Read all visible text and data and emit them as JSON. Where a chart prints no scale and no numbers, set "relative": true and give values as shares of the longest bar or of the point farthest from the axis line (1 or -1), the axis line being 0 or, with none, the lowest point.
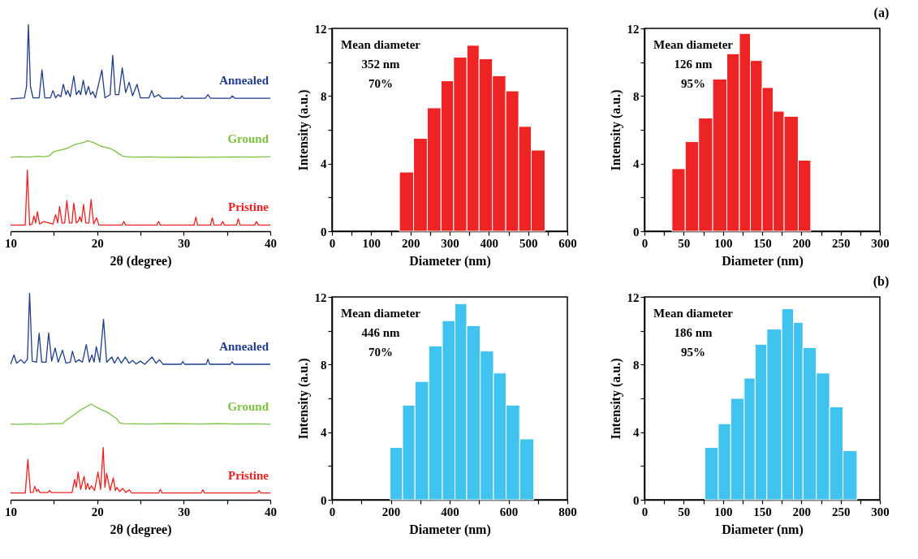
{
  "chart_data": [
    {
      "type": "line",
      "relative": true,
      "xlabel": "2θ (degree)",
      "xlim": [
        10,
        40
      ],
      "xticks": [
        10,
        {
          "value": 15,
          "label": null
        },
        20,
        {
          "value": 25,
          "label": null
        },
        30,
        {
          "value": 35,
          "label": null
        },
        40
      ],
      "series": [
        {
          "name": "Annealed",
          "color": "#1f3d8a",
          "x": [
            10,
            11.6,
            11.85,
            12.06,
            12.3,
            12.6,
            13.3,
            13.63,
            13.95,
            14.6,
            14.9,
            15.2,
            15.5,
            15.8,
            16.1,
            16.4,
            16.6,
            16.9,
            17.3,
            17.6,
            17.9,
            18.1,
            18.4,
            18.7,
            19.0,
            19.25,
            19.5,
            19.8,
            20.55,
            20.9,
            21.5,
            21.8,
            22.1,
            22.5,
            22.9,
            23.3,
            23.7,
            24.1,
            24.6,
            25.0,
            26.0,
            26.3,
            26.6,
            27.1,
            27.5,
            29.6,
            29.8,
            30.0,
            32.5,
            32.8,
            33.1,
            35.4,
            35.6,
            35.9,
            40
          ],
          "values": [
            0.64,
            0.645,
            0.7,
            1.0,
            0.7,
            0.645,
            0.645,
            0.78,
            0.645,
            0.645,
            0.68,
            0.645,
            0.66,
            0.65,
            0.71,
            0.66,
            0.68,
            0.65,
            0.75,
            0.66,
            0.68,
            0.66,
            0.73,
            0.66,
            0.7,
            0.66,
            0.675,
            0.645,
            0.78,
            0.645,
            0.66,
            0.85,
            0.66,
            0.66,
            0.79,
            0.67,
            0.72,
            0.655,
            0.71,
            0.645,
            0.645,
            0.68,
            0.648,
            0.66,
            0.643,
            0.643,
            0.654,
            0.643,
            0.643,
            0.66,
            0.643,
            0.643,
            0.654,
            0.643,
            0.643
          ]
        },
        {
          "name": "Ground",
          "color": "#7cc142",
          "x": [
            10,
            11,
            12,
            13,
            14,
            14.5,
            15,
            15.5,
            16,
            16.5,
            17,
            17.5,
            18,
            18.5,
            18.9,
            19.5,
            20,
            20.5,
            21,
            21.5,
            22,
            22.5,
            23,
            24,
            26,
            28,
            30,
            32,
            34,
            36,
            38,
            40
          ],
          "values": [
            0.357,
            0.36,
            0.358,
            0.362,
            0.36,
            0.365,
            0.385,
            0.39,
            0.395,
            0.4,
            0.41,
            0.42,
            0.425,
            0.43,
            0.438,
            0.43,
            0.42,
            0.41,
            0.405,
            0.4,
            0.39,
            0.375,
            0.362,
            0.358,
            0.359,
            0.357,
            0.358,
            0.357,
            0.358,
            0.359,
            0.358,
            0.36
          ]
        },
        {
          "name": "Pristine",
          "color": "#ee2020",
          "x": [
            10,
            11.7,
            11.94,
            12.2,
            12.5,
            12.7,
            12.9,
            13.1,
            13.35,
            13.85,
            14.9,
            15.2,
            15.45,
            15.66,
            15.95,
            16.25,
            16.5,
            16.8,
            17.1,
            17.3,
            17.6,
            17.85,
            18.0,
            18.2,
            18.43,
            18.7,
            19.05,
            19.3,
            19.6,
            19.94,
            20.2,
            22.9,
            23.08,
            23.3,
            26.9,
            27.1,
            27.3,
            31.2,
            31.4,
            31.6,
            33.1,
            33.3,
            33.5,
            34.3,
            34.5,
            34.7,
            36.1,
            36.3,
            36.5,
            38.2,
            38.4,
            38.6,
            40
          ],
          "values": [
            0.03,
            0.03,
            0.295,
            0.03,
            0.035,
            0.074,
            0.04,
            0.095,
            0.035,
            0.047,
            0.035,
            0.08,
            0.04,
            0.12,
            0.04,
            0.04,
            0.148,
            0.04,
            0.04,
            0.136,
            0.04,
            0.05,
            0.071,
            0.045,
            0.13,
            0.04,
            0.04,
            0.153,
            0.035,
            0.065,
            0.03,
            0.03,
            0.047,
            0.03,
            0.03,
            0.047,
            0.03,
            0.03,
            0.068,
            0.03,
            0.03,
            0.065,
            0.03,
            0.03,
            0.047,
            0.03,
            0.03,
            0.06,
            0.03,
            0.03,
            0.047,
            0.03,
            0.03
          ]
        }
      ]
    },
    {
      "type": "histogram",
      "color": "#ee2424",
      "bins": [
        172,
        208,
        243,
        278,
        310,
        344,
        375,
        409,
        443,
        476,
        508,
        543
      ],
      "values": [
        3.5,
        5.5,
        7.3,
        8.9,
        10.3,
        11.0,
        10.2,
        9.2,
        8.3,
        6.2,
        4.8
      ],
      "xlabel": "Diameter (nm)",
      "ylabel": "Intensity (a.u.)",
      "xlim": [
        0,
        600
      ],
      "xticks": [
        0,
        {
          "value": 50,
          "label": null
        },
        100,
        {
          "value": 150,
          "label": null
        },
        200,
        {
          "value": 250,
          "label": null
        },
        300,
        {
          "value": 350,
          "label": null
        },
        400,
        {
          "value": 450,
          "label": null
        },
        500,
        {
          "value": 550,
          "label": null
        },
        600
      ],
      "ylim": [
        0,
        12
      ],
      "yticks": [
        0,
        {
          "value": 2,
          "label": null
        },
        4,
        {
          "value": 6,
          "label": null
        },
        8,
        {
          "value": 10,
          "label": null
        },
        12
      ],
      "annotations": [
        "Mean diameter",
        "352 nm",
        "70%"
      ]
    },
    {
      "type": "histogram",
      "title": "(a)",
      "color": "#ee2424",
      "bins": [
        35,
        52,
        69,
        87,
        105,
        121,
        135,
        150,
        164,
        178,
        196,
        212
      ],
      "values": [
        3.7,
        5.3,
        6.7,
        9.0,
        10.5,
        11.7,
        10.1,
        8.5,
        7.1,
        6.8,
        4.2
      ],
      "xlabel": "Diameter (nm)",
      "ylabel": "Intensity (a.u.)",
      "xlim": [
        0,
        300
      ],
      "xticks": [
        0,
        {
          "value": 25,
          "label": null
        },
        50,
        {
          "value": 75,
          "label": null
        },
        100,
        {
          "value": 125,
          "label": null
        },
        150,
        {
          "value": 175,
          "label": null
        },
        200,
        {
          "value": 225,
          "label": null
        },
        250,
        {
          "value": 275,
          "label": null
        },
        300
      ],
      "ylim": [
        0,
        12
      ],
      "yticks": [
        0,
        {
          "value": 2,
          "label": null
        },
        4,
        {
          "value": 6,
          "label": null
        },
        8,
        {
          "value": 10,
          "label": null
        },
        12
      ],
      "annotations": [
        "Mean diameter",
        "126 nm",
        "95%"
      ]
    },
    {
      "type": "line",
      "relative": true,
      "xlabel": "2θ (degree)",
      "xlim": [
        10,
        40
      ],
      "xticks": [
        10,
        {
          "value": 15,
          "label": null
        },
        20,
        {
          "value": 25,
          "label": null
        },
        30,
        {
          "value": 35,
          "label": null
        },
        40
      ],
      "series": [
        {
          "name": "Annealed",
          "color": "#1f3d8a",
          "x": [
            10,
            10.4,
            10.7,
            11.2,
            11.6,
            11.95,
            12.2,
            12.5,
            13.0,
            13.3,
            13.6,
            14.1,
            14.4,
            14.75,
            15.15,
            15.5,
            16.0,
            16.4,
            16.9,
            17.15,
            17.5,
            17.9,
            18.3,
            18.75,
            19.1,
            19.4,
            19.65,
            19.9,
            20.3,
            20.74,
            21.1,
            21.7,
            22.0,
            22.4,
            22.8,
            23.25,
            23.7,
            24.1,
            24.5,
            25.0,
            25.5,
            26.35,
            26.8,
            27.2,
            27.6,
            29.7,
            29.9,
            30.1,
            32.6,
            32.8,
            33.0,
            35.4,
            35.6,
            35.8,
            40
          ],
          "values": [
            0.655,
            0.7,
            0.66,
            0.677,
            0.66,
            0.68,
            1.0,
            0.67,
            0.665,
            0.805,
            0.665,
            0.665,
            0.807,
            0.67,
            0.734,
            0.665,
            0.723,
            0.66,
            0.665,
            0.718,
            0.665,
            0.677,
            0.665,
            0.75,
            0.665,
            0.7,
            0.665,
            0.74,
            0.665,
            0.872,
            0.665,
            0.69,
            0.66,
            0.69,
            0.66,
            0.69,
            0.66,
            0.674,
            0.657,
            0.67,
            0.655,
            0.69,
            0.66,
            0.677,
            0.655,
            0.655,
            0.668,
            0.655,
            0.655,
            0.68,
            0.655,
            0.655,
            0.667,
            0.655,
            0.655
          ]
        },
        {
          "name": "Ground",
          "color": "#7cc142",
          "x": [
            10,
            11,
            12,
            13,
            14,
            15,
            16,
            16.3,
            16.8,
            17.3,
            17.8,
            18.3,
            18.8,
            19.3,
            19.8,
            20.3,
            20.8,
            21.3,
            21.8,
            22.3,
            22.6,
            23,
            24,
            26,
            28,
            30,
            32,
            34,
            36,
            38,
            40
          ],
          "values": [
            0.366,
            0.364,
            0.367,
            0.365,
            0.366,
            0.368,
            0.368,
            0.38,
            0.395,
            0.41,
            0.425,
            0.44,
            0.45,
            0.463,
            0.45,
            0.44,
            0.43,
            0.42,
            0.405,
            0.39,
            0.372,
            0.368,
            0.367,
            0.366,
            0.368,
            0.367,
            0.366,
            0.368,
            0.366,
            0.367,
            0.365
          ]
        },
        {
          "name": "Pristine",
          "color": "#ee2020",
          "x": [
            10,
            11.7,
            12.0,
            12.3,
            12.6,
            12.8,
            13.0,
            13.2,
            13.4,
            14.3,
            14.5,
            14.7,
            17.1,
            17.4,
            17.6,
            17.8,
            18.1,
            18.5,
            18.7,
            18.9,
            19.1,
            19.35,
            19.7,
            20.1,
            20.4,
            20.7,
            20.9,
            21.1,
            21.5,
            21.87,
            22.1,
            22.27,
            22.6,
            22.95,
            23.3,
            23.7,
            24.0,
            27.1,
            27.3,
            27.5,
            32.0,
            32.2,
            32.4,
            38.5,
            38.7,
            38.9,
            40
          ],
          "values": [
            0.033,
            0.033,
            0.195,
            0.035,
            0.036,
            0.065,
            0.04,
            0.05,
            0.035,
            0.035,
            0.045,
            0.035,
            0.035,
            0.098,
            0.06,
            0.134,
            0.05,
            0.113,
            0.05,
            0.08,
            0.05,
            0.067,
            0.045,
            0.134,
            0.05,
            0.252,
            0.06,
            0.128,
            0.045,
            0.106,
            0.045,
            0.06,
            0.04,
            0.055,
            0.035,
            0.048,
            0.033,
            0.033,
            0.05,
            0.033,
            0.033,
            0.048,
            0.033,
            0.033,
            0.045,
            0.033,
            0.033
          ]
        }
      ]
    },
    {
      "type": "histogram",
      "color": "#41c3f0",
      "bins": [
        197,
        240,
        282,
        329,
        375,
        418,
        458,
        504,
        549,
        592,
        638,
        686
      ],
      "values": [
        3.1,
        5.6,
        7.0,
        9.1,
        10.6,
        11.6,
        10.3,
        8.8,
        7.5,
        5.6,
        3.6
      ],
      "xlabel": "Diameter (nm)",
      "ylabel": "Intensity (a.u.)",
      "xlim": [
        0,
        800
      ],
      "xticks": [
        0,
        {
          "value": 100,
          "label": null
        },
        200,
        {
          "value": 300,
          "label": null
        },
        400,
        {
          "value": 500,
          "label": null
        },
        600,
        {
          "value": 700,
          "label": null
        },
        800
      ],
      "ylim": [
        0,
        12
      ],
      "yticks": [
        0,
        {
          "value": 2,
          "label": null
        },
        4,
        {
          "value": 6,
          "label": null
        },
        8,
        {
          "value": 10,
          "label": null
        },
        12
      ],
      "annotations": [
        "Mean diameter",
        "446 nm",
        "70%"
      ]
    },
    {
      "type": "histogram",
      "title": "(b)",
      "color": "#41c3f0",
      "bins": [
        77,
        94,
        110,
        127,
        141,
        156,
        175,
        190,
        202,
        219,
        236,
        253,
        271
      ],
      "values": [
        3.1,
        4.5,
        6.0,
        7.2,
        9.2,
        10.1,
        11.3,
        10.5,
        9.0,
        7.5,
        5.5,
        2.9
      ],
      "xlabel": "Diameter (nm)",
      "ylabel": "Intensity (a.u.)",
      "xlim": [
        0,
        300
      ],
      "xticks": [
        0,
        {
          "value": 25,
          "label": null
        },
        50,
        {
          "value": 75,
          "label": null
        },
        100,
        {
          "value": 125,
          "label": null
        },
        150,
        {
          "value": 175,
          "label": null
        },
        200,
        {
          "value": 225,
          "label": null
        },
        250,
        {
          "value": 275,
          "label": null
        },
        300
      ],
      "ylim": [
        0,
        12
      ],
      "yticks": [
        0,
        {
          "value": 2,
          "label": null
        },
        4,
        {
          "value": 6,
          "label": null
        },
        8,
        {
          "value": 10,
          "label": null
        },
        12
      ],
      "annotations": [
        "Mean diameter",
        "186 nm",
        "95%"
      ]
    }
  ]
}
